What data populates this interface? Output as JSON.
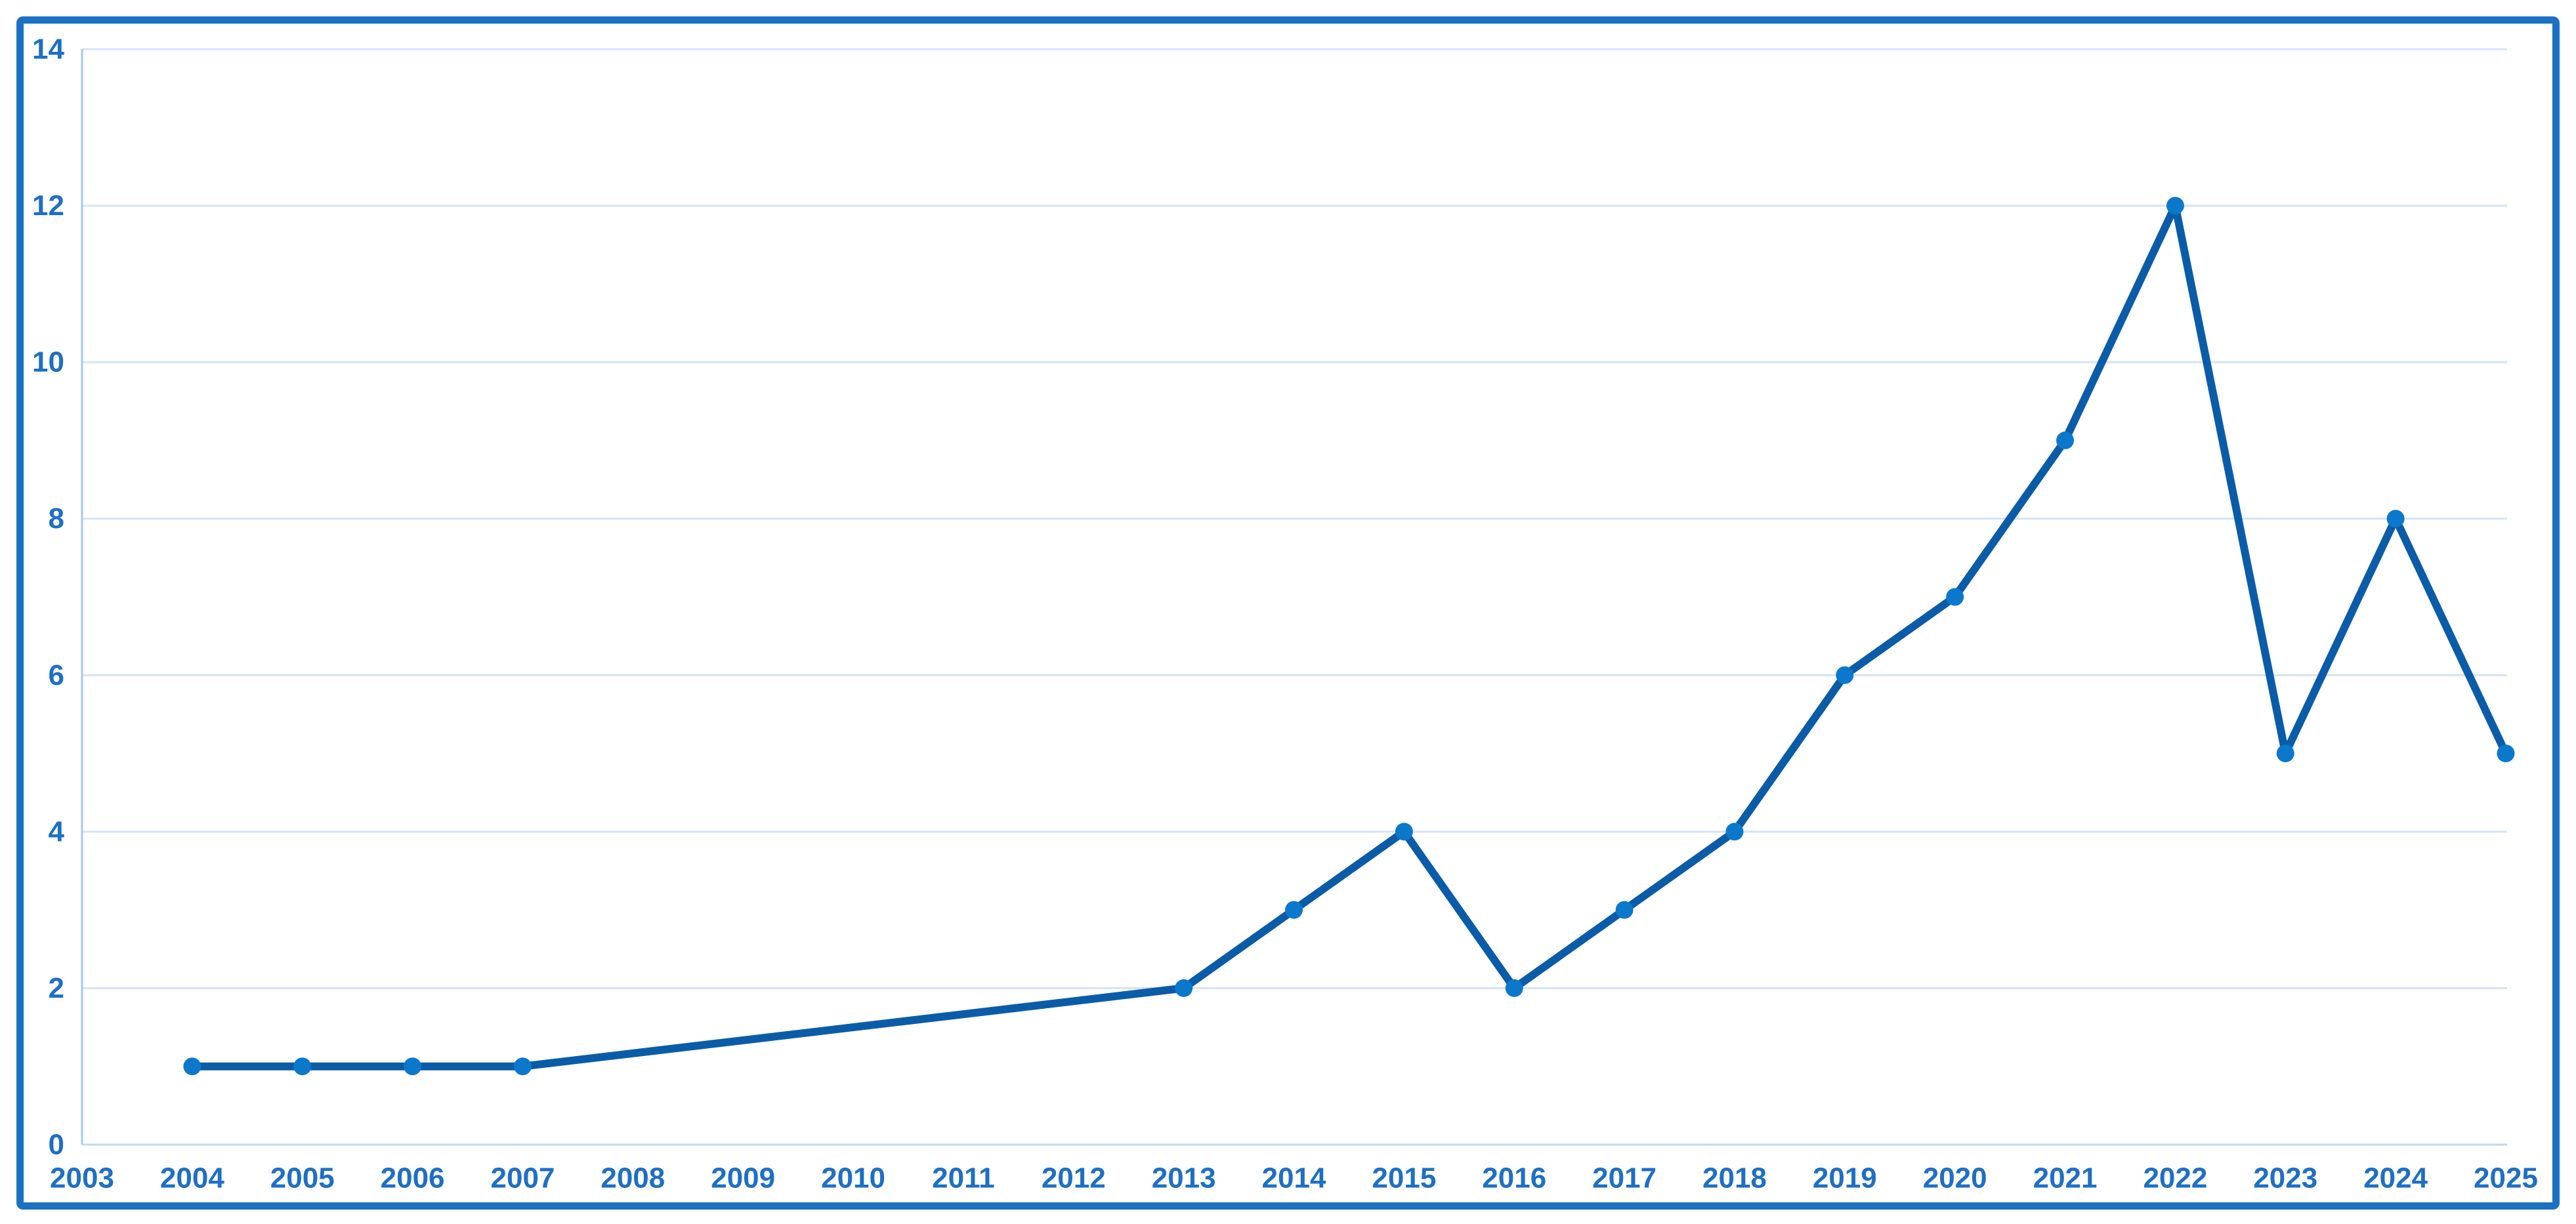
{
  "chart_data": {
    "type": "line",
    "title": "",
    "xlabel": "",
    "ylabel": "",
    "categories": [
      "2003",
      "2004",
      "2005",
      "2006",
      "2007",
      "2008",
      "2009",
      "2010",
      "2011",
      "2012",
      "2013",
      "2014",
      "2015",
      "2016",
      "2017",
      "2018",
      "2019",
      "2020",
      "2021",
      "2022",
      "2023",
      "2024",
      "2025"
    ],
    "series": [
      {
        "name": "values-by-year",
        "values": [
          null,
          1,
          1,
          1,
          1,
          null,
          null,
          null,
          null,
          null,
          2,
          3,
          4,
          2,
          3,
          4,
          6,
          7,
          9,
          12,
          5,
          8,
          5
        ]
      }
    ],
    "y_ticks": [
      0,
      2,
      4,
      6,
      8,
      10,
      12,
      14
    ],
    "ylim": [
      0,
      14
    ],
    "grid": true,
    "legend_position": "none",
    "marker_style": "circle",
    "connect_gaps": true
  },
  "colors": {
    "frame_border": "#1B72C4",
    "line": "#0B5CA8",
    "marker": "#0C78CC",
    "gridline": "#D5E3F5",
    "axis_line_vertical": "#A4C8EC",
    "axis_line_bottom": "#BFD9F2",
    "tick_label": "#1E6FC5",
    "background": "#FFFFFF"
  }
}
